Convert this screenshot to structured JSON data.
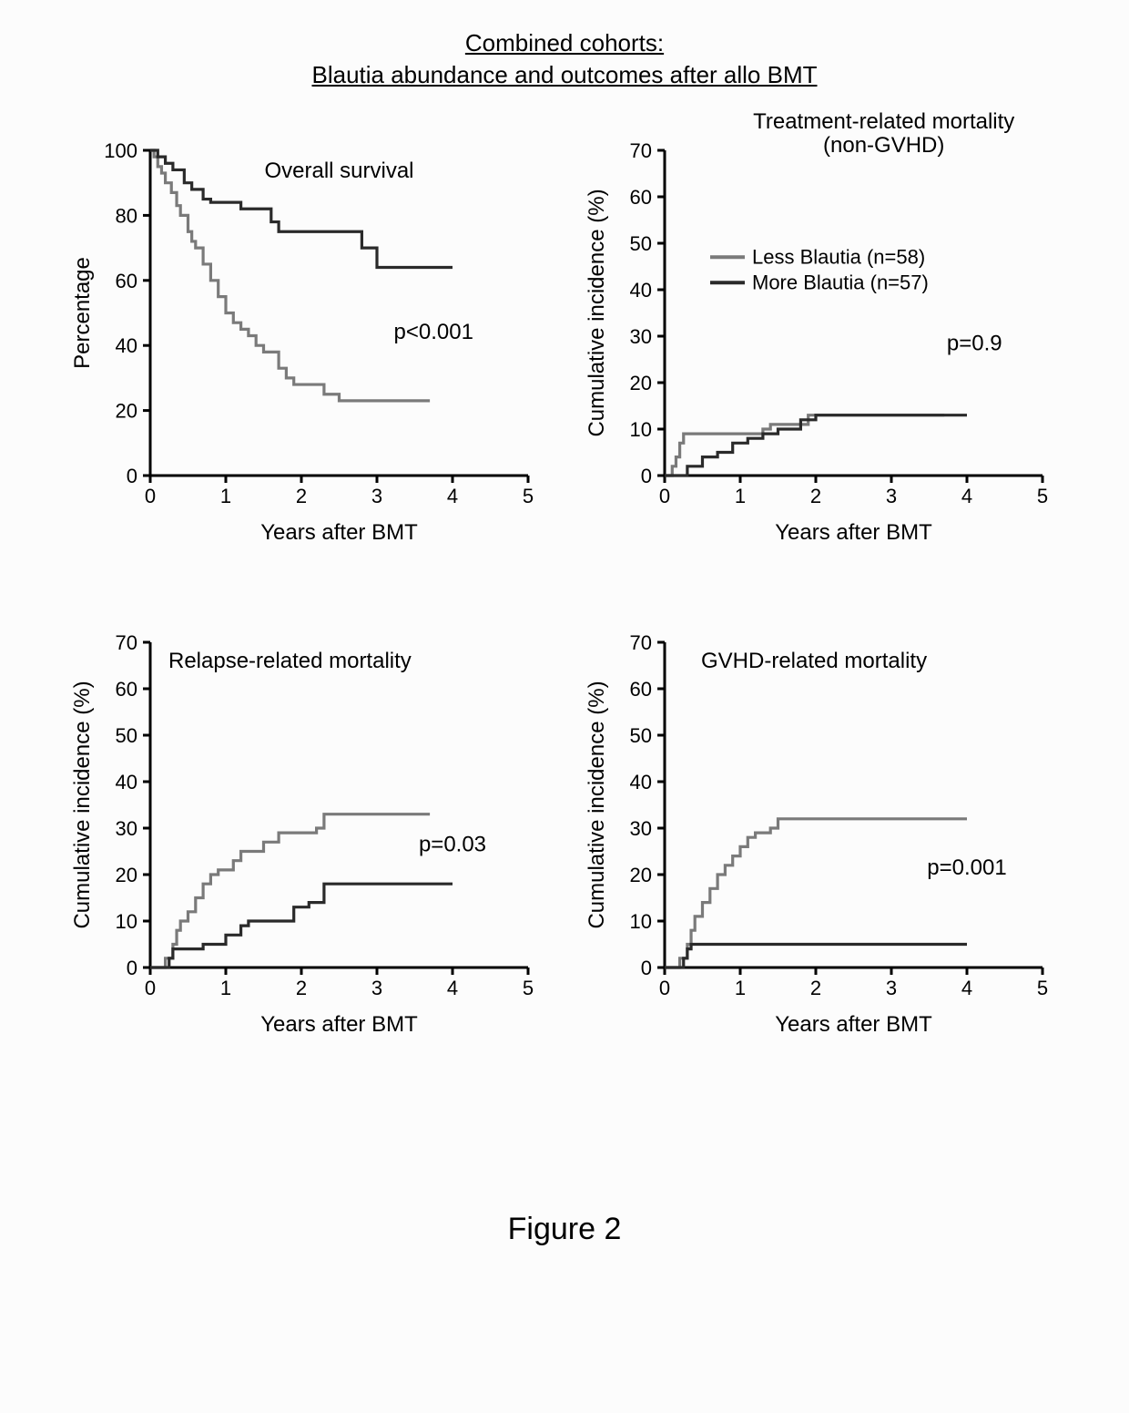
{
  "main_title_line1": "Combined cohorts:",
  "main_title_line2": "Blautia abundance and outcomes after allo BMT",
  "figure_caption": "Figure 2",
  "legend": {
    "items": [
      {
        "label": "Less Blautia (n=58)",
        "color": "#7a7a7a"
      },
      {
        "label": "More Blautia (n=57)",
        "color": "#2a2a2a"
      }
    ],
    "fontsize": 22
  },
  "global_style": {
    "background_color": "#fcfcfc",
    "axis_color": "#000000",
    "axis_line_width": 3,
    "tick_len": 8,
    "tick_fontsize": 22,
    "label_fontsize": 24,
    "panel_title_fontsize": 24,
    "p_fontsize": 24,
    "xlabel": "Years after BMT"
  },
  "panels": {
    "overall_survival": {
      "title": "Overall survival",
      "ylabel": "Percentage",
      "p_text": "p<0.001",
      "ylim": [
        0,
        100
      ],
      "ytick_step": 20,
      "xlim": [
        0,
        5
      ],
      "xtick_step": 1,
      "line_width": 3.2,
      "series": {
        "less": {
          "color": "#7a7a7a",
          "points": [
            [
              0,
              100
            ],
            [
              0.05,
              98
            ],
            [
              0.1,
              95
            ],
            [
              0.15,
              93
            ],
            [
              0.2,
              90
            ],
            [
              0.28,
              87
            ],
            [
              0.35,
              83
            ],
            [
              0.4,
              80
            ],
            [
              0.5,
              75
            ],
            [
              0.55,
              72
            ],
            [
              0.6,
              70
            ],
            [
              0.7,
              65
            ],
            [
              0.8,
              60
            ],
            [
              0.9,
              55
            ],
            [
              1.0,
              50
            ],
            [
              1.1,
              47
            ],
            [
              1.2,
              45
            ],
            [
              1.3,
              43
            ],
            [
              1.4,
              40
            ],
            [
              1.5,
              38
            ],
            [
              1.7,
              33
            ],
            [
              1.8,
              30
            ],
            [
              1.9,
              28
            ],
            [
              2.3,
              25
            ],
            [
              2.5,
              23
            ],
            [
              3.7,
              23
            ]
          ]
        },
        "more": {
          "color": "#2a2a2a",
          "points": [
            [
              0,
              100
            ],
            [
              0.1,
              98
            ],
            [
              0.2,
              96
            ],
            [
              0.3,
              94
            ],
            [
              0.45,
              90
            ],
            [
              0.55,
              88
            ],
            [
              0.7,
              85
            ],
            [
              0.8,
              84
            ],
            [
              1.2,
              82
            ],
            [
              1.6,
              78
            ],
            [
              1.7,
              75
            ],
            [
              2.8,
              70
            ],
            [
              3.0,
              64
            ],
            [
              4.0,
              64
            ]
          ]
        }
      }
    },
    "trm": {
      "title": "Treatment-related mortality",
      "subtitle": "(non-GVHD)",
      "ylabel": "Cumulative incidence (%)",
      "p_text": "p=0.9",
      "ylim": [
        0,
        70
      ],
      "ytick_step": 10,
      "xlim": [
        0,
        5
      ],
      "xtick_step": 1,
      "line_width": 3.2,
      "show_legend": true,
      "series": {
        "less": {
          "color": "#7a7a7a",
          "points": [
            [
              0,
              0
            ],
            [
              0.1,
              2
            ],
            [
              0.15,
              4
            ],
            [
              0.2,
              7
            ],
            [
              0.25,
              9
            ],
            [
              0.5,
              9
            ],
            [
              1.3,
              10
            ],
            [
              1.4,
              11
            ],
            [
              1.7,
              11
            ],
            [
              1.9,
              13
            ],
            [
              3.7,
              13
            ]
          ]
        },
        "more": {
          "color": "#2a2a2a",
          "points": [
            [
              0,
              0
            ],
            [
              0.1,
              0
            ],
            [
              0.3,
              2
            ],
            [
              0.5,
              4
            ],
            [
              0.7,
              5
            ],
            [
              0.9,
              7
            ],
            [
              1.1,
              8
            ],
            [
              1.3,
              9
            ],
            [
              1.5,
              10
            ],
            [
              1.8,
              12
            ],
            [
              2.0,
              13
            ],
            [
              4.0,
              13
            ]
          ]
        }
      }
    },
    "relapse": {
      "title": "Relapse-related mortality",
      "ylabel": "Cumulative incidence (%)",
      "p_text": "p=0.03",
      "ylim": [
        0,
        70
      ],
      "ytick_step": 10,
      "xlim": [
        0,
        5
      ],
      "xtick_step": 1,
      "line_width": 3.2,
      "series": {
        "less": {
          "color": "#7a7a7a",
          "points": [
            [
              0,
              0
            ],
            [
              0.2,
              2
            ],
            [
              0.3,
              5
            ],
            [
              0.35,
              8
            ],
            [
              0.4,
              10
            ],
            [
              0.5,
              12
            ],
            [
              0.6,
              15
            ],
            [
              0.7,
              18
            ],
            [
              0.8,
              20
            ],
            [
              0.9,
              21
            ],
            [
              1.1,
              23
            ],
            [
              1.2,
              25
            ],
            [
              1.5,
              27
            ],
            [
              1.7,
              29
            ],
            [
              2.2,
              30
            ],
            [
              2.3,
              33
            ],
            [
              3.7,
              33
            ]
          ]
        },
        "more": {
          "color": "#2a2a2a",
          "points": [
            [
              0,
              0
            ],
            [
              0.25,
              2
            ],
            [
              0.3,
              4
            ],
            [
              0.7,
              5
            ],
            [
              1.0,
              7
            ],
            [
              1.2,
              9
            ],
            [
              1.3,
              10
            ],
            [
              1.9,
              13
            ],
            [
              2.1,
              14
            ],
            [
              2.3,
              18
            ],
            [
              4.0,
              18
            ]
          ]
        }
      }
    },
    "gvhd": {
      "title": "GVHD-related mortality",
      "ylabel": "Cumulative incidence (%)",
      "p_text": "p=0.001",
      "ylim": [
        0,
        70
      ],
      "ytick_step": 10,
      "xlim": [
        0,
        5
      ],
      "xtick_step": 1,
      "line_width": 3.2,
      "series": {
        "less": {
          "color": "#7a7a7a",
          "points": [
            [
              0,
              0
            ],
            [
              0.2,
              2
            ],
            [
              0.3,
              5
            ],
            [
              0.35,
              8
            ],
            [
              0.4,
              11
            ],
            [
              0.5,
              14
            ],
            [
              0.6,
              17
            ],
            [
              0.7,
              20
            ],
            [
              0.8,
              22
            ],
            [
              0.9,
              24
            ],
            [
              1.0,
              26
            ],
            [
              1.1,
              28
            ],
            [
              1.2,
              29
            ],
            [
              1.4,
              30
            ],
            [
              1.5,
              32
            ],
            [
              4.0,
              32
            ]
          ]
        },
        "more": {
          "color": "#2a2a2a",
          "points": [
            [
              0,
              0
            ],
            [
              0.25,
              2
            ],
            [
              0.3,
              4
            ],
            [
              0.35,
              5
            ],
            [
              4.0,
              5
            ]
          ]
        }
      }
    }
  }
}
